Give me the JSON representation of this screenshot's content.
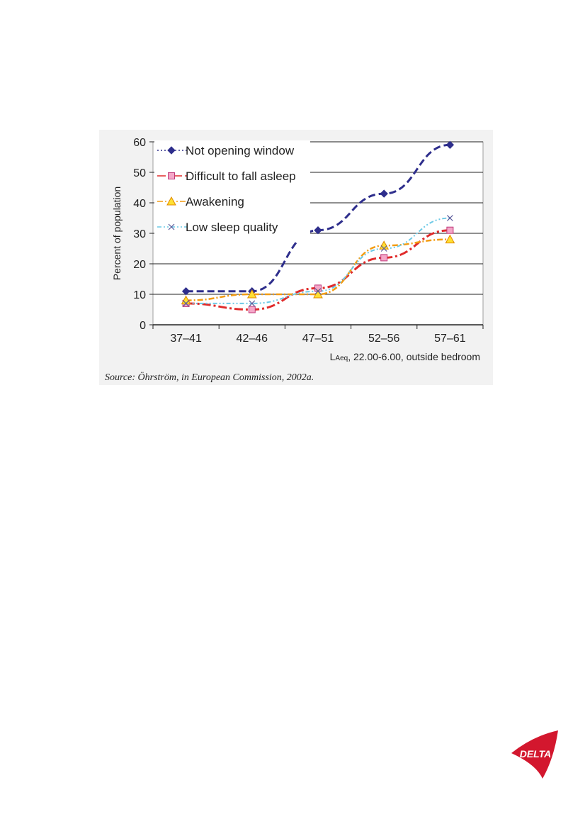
{
  "chart_data": {
    "type": "line",
    "title": "",
    "ylabel": "Percent of population",
    "xlabel_main": "L",
    "xlabel_sub": "Aeq",
    "xlabel_rest": ", 22.00-6.00, outside bedroom",
    "categories": [
      "37–41",
      "42–46",
      "47–51",
      "52–56",
      "57–61"
    ],
    "ylim": [
      0,
      60
    ],
    "yticks": [
      0,
      10,
      20,
      30,
      40,
      50,
      60
    ],
    "series": [
      {
        "name": "Not opening window",
        "values": [
          11,
          11,
          31,
          43,
          59
        ],
        "color": "#2e2e8c",
        "marker": "diamond"
      },
      {
        "name": "Difficult to fall asleep",
        "values": [
          7,
          5,
          12,
          22,
          31
        ],
        "color": "#e02b2b",
        "marker": "square"
      },
      {
        "name": "Awakening",
        "values": [
          8,
          10,
          10,
          26,
          28
        ],
        "color": "#f39c12",
        "marker": "triangle"
      },
      {
        "name": "Low sleep quality",
        "values": [
          7,
          7,
          11,
          25,
          35
        ],
        "color": "#6cc9e6",
        "marker": "x"
      }
    ],
    "source": "Source: Öhrström, in European Commission, 2002a."
  },
  "logo": {
    "text": "DELTA",
    "color": "#d3172e"
  }
}
